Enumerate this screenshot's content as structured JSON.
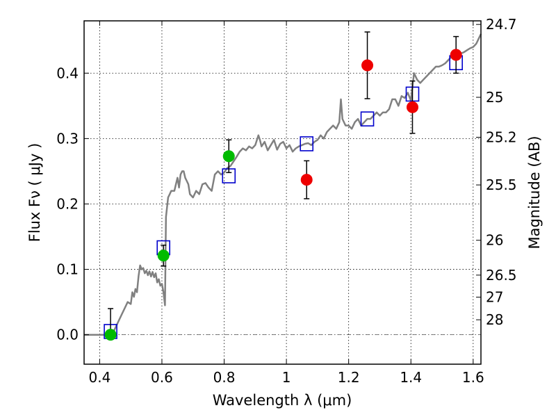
{
  "chart_data": {
    "type": "scatter",
    "xlabel": "Wavelength  λ (μm)",
    "ylabel": "Flux  Fν  ( μJy )",
    "ylabel_right": "Magnitude (AB)",
    "xlim": [
      0.35,
      1.625
    ],
    "ylim": [
      -0.045,
      0.48
    ],
    "grid": true,
    "x_ticks": [
      0.4,
      0.6,
      0.8,
      1.0,
      1.2,
      1.4,
      1.6
    ],
    "x_tick_labels": [
      "0.4",
      "0.6",
      "0.8",
      "1",
      "1.2",
      "1.4",
      "1.6"
    ],
    "y_ticks": [
      0.0,
      0.1,
      0.2,
      0.3,
      0.4
    ],
    "y_tick_labels": [
      "0.0",
      "0.1",
      "0.2",
      "0.3",
      "0.4"
    ],
    "right_ticks": [
      {
        "label": "24.7",
        "flux": 0.4745
      },
      {
        "label": "25",
        "flux": 0.3631
      },
      {
        "label": "25.2",
        "flux": 0.302
      },
      {
        "label": "25.5",
        "flux": 0.2291
      },
      {
        "label": "26",
        "flux": 0.1445
      },
      {
        "label": "26.5",
        "flux": 0.0912
      },
      {
        "label": "27",
        "flux": 0.0575
      },
      {
        "label": "28",
        "flux": 0.0229
      }
    ],
    "colors": {
      "model": "#808080",
      "green": "#00bb00",
      "red": "#ee0000",
      "box": "#0000cc",
      "errorbar": "#000000"
    },
    "series": [
      {
        "kind": "line",
        "points": [
          [
            0.35,
            0.0
          ],
          [
            0.44,
            0.0
          ],
          [
            0.455,
            0.015
          ],
          [
            0.47,
            0.03
          ],
          [
            0.48,
            0.04
          ],
          [
            0.49,
            0.05
          ],
          [
            0.5,
            0.047
          ],
          [
            0.505,
            0.065
          ],
          [
            0.51,
            0.058
          ],
          [
            0.515,
            0.07
          ],
          [
            0.52,
            0.065
          ],
          [
            0.525,
            0.09
          ],
          [
            0.53,
            0.106
          ],
          [
            0.535,
            0.1
          ],
          [
            0.54,
            0.102
          ],
          [
            0.545,
            0.094
          ],
          [
            0.55,
            0.098
          ],
          [
            0.555,
            0.091
          ],
          [
            0.56,
            0.097
          ],
          [
            0.565,
            0.089
          ],
          [
            0.57,
            0.096
          ],
          [
            0.575,
            0.088
          ],
          [
            0.58,
            0.094
          ],
          [
            0.585,
            0.08
          ],
          [
            0.59,
            0.085
          ],
          [
            0.595,
            0.075
          ],
          [
            0.6,
            0.078
          ],
          [
            0.605,
            0.065
          ],
          [
            0.61,
            0.045
          ],
          [
            0.613,
            0.18
          ],
          [
            0.62,
            0.21
          ],
          [
            0.625,
            0.215
          ],
          [
            0.63,
            0.22
          ],
          [
            0.64,
            0.22
          ],
          [
            0.645,
            0.23
          ],
          [
            0.65,
            0.24
          ],
          [
            0.655,
            0.225
          ],
          [
            0.66,
            0.245
          ],
          [
            0.665,
            0.25
          ],
          [
            0.67,
            0.25
          ],
          [
            0.675,
            0.24
          ],
          [
            0.68,
            0.235
          ],
          [
            0.685,
            0.23
          ],
          [
            0.69,
            0.215
          ],
          [
            0.7,
            0.21
          ],
          [
            0.71,
            0.22
          ],
          [
            0.72,
            0.215
          ],
          [
            0.73,
            0.23
          ],
          [
            0.74,
            0.232
          ],
          [
            0.75,
            0.225
          ],
          [
            0.76,
            0.22
          ],
          [
            0.77,
            0.245
          ],
          [
            0.78,
            0.25
          ],
          [
            0.79,
            0.245
          ],
          [
            0.8,
            0.248
          ],
          [
            0.81,
            0.255
          ],
          [
            0.82,
            0.258
          ],
          [
            0.83,
            0.265
          ],
          [
            0.84,
            0.272
          ],
          [
            0.85,
            0.28
          ],
          [
            0.86,
            0.285
          ],
          [
            0.87,
            0.282
          ],
          [
            0.88,
            0.288
          ],
          [
            0.89,
            0.285
          ],
          [
            0.9,
            0.29
          ],
          [
            0.91,
            0.305
          ],
          [
            0.915,
            0.298
          ],
          [
            0.92,
            0.288
          ],
          [
            0.93,
            0.295
          ],
          [
            0.94,
            0.282
          ],
          [
            0.95,
            0.29
          ],
          [
            0.96,
            0.298
          ],
          [
            0.97,
            0.283
          ],
          [
            0.98,
            0.292
          ],
          [
            0.99,
            0.295
          ],
          [
            1.0,
            0.285
          ],
          [
            1.01,
            0.29
          ],
          [
            1.02,
            0.28
          ],
          [
            1.03,
            0.285
          ],
          [
            1.04,
            0.288
          ],
          [
            1.05,
            0.29
          ],
          [
            1.06,
            0.292
          ],
          [
            1.07,
            0.293
          ],
          [
            1.08,
            0.29
          ],
          [
            1.09,
            0.295
          ],
          [
            1.1,
            0.298
          ],
          [
            1.11,
            0.305
          ],
          [
            1.12,
            0.3
          ],
          [
            1.13,
            0.31
          ],
          [
            1.14,
            0.315
          ],
          [
            1.15,
            0.32
          ],
          [
            1.16,
            0.315
          ],
          [
            1.17,
            0.325
          ],
          [
            1.175,
            0.36
          ],
          [
            1.18,
            0.33
          ],
          [
            1.19,
            0.32
          ],
          [
            1.2,
            0.32
          ],
          [
            1.21,
            0.315
          ],
          [
            1.22,
            0.325
          ],
          [
            1.23,
            0.33
          ],
          [
            1.24,
            0.32
          ],
          [
            1.25,
            0.325
          ],
          [
            1.26,
            0.33
          ],
          [
            1.27,
            0.33
          ],
          [
            1.28,
            0.335
          ],
          [
            1.29,
            0.34
          ],
          [
            1.3,
            0.335
          ],
          [
            1.31,
            0.34
          ],
          [
            1.32,
            0.34
          ],
          [
            1.33,
            0.345
          ],
          [
            1.34,
            0.36
          ],
          [
            1.35,
            0.36
          ],
          [
            1.36,
            0.35
          ],
          [
            1.37,
            0.365
          ],
          [
            1.38,
            0.362
          ],
          [
            1.39,
            0.37
          ],
          [
            1.4,
            0.358
          ],
          [
            1.41,
            0.4
          ],
          [
            1.42,
            0.39
          ],
          [
            1.43,
            0.385
          ],
          [
            1.44,
            0.39
          ],
          [
            1.45,
            0.395
          ],
          [
            1.46,
            0.4
          ],
          [
            1.47,
            0.405
          ],
          [
            1.48,
            0.41
          ],
          [
            1.49,
            0.41
          ],
          [
            1.5,
            0.412
          ],
          [
            1.51,
            0.415
          ],
          [
            1.52,
            0.42
          ],
          [
            1.53,
            0.425
          ],
          [
            1.54,
            0.43
          ],
          [
            1.55,
            0.428
          ],
          [
            1.56,
            0.43
          ],
          [
            1.57,
            0.432
          ],
          [
            1.58,
            0.435
          ],
          [
            1.59,
            0.438
          ],
          [
            1.6,
            0.44
          ],
          [
            1.61,
            0.445
          ],
          [
            1.625,
            0.46
          ]
        ]
      },
      {
        "kind": "markers",
        "marker": "square",
        "color": "blue",
        "points": [
          [
            0.435,
            0.005
          ],
          [
            0.605,
            0.133
          ],
          [
            0.815,
            0.243
          ],
          [
            1.065,
            0.292
          ],
          [
            1.26,
            0.33
          ],
          [
            1.405,
            0.368
          ],
          [
            1.545,
            0.416
          ]
        ]
      },
      {
        "kind": "markers",
        "marker": "circle",
        "color": "green",
        "points": [
          {
            "x": 0.435,
            "y": 0.0,
            "yerr_low": 0.0,
            "yerr_high": 0.04
          },
          {
            "x": 0.605,
            "y": 0.121,
            "yerr_low": 0.016,
            "yerr_high": 0.016
          },
          {
            "x": 0.815,
            "y": 0.273,
            "yerr_low": 0.025,
            "yerr_high": 0.025
          }
        ]
      },
      {
        "kind": "markers",
        "marker": "circle",
        "color": "red",
        "points": [
          {
            "x": 1.065,
            "y": 0.237,
            "yerr_low": 0.029,
            "yerr_high": 0.029
          },
          {
            "x": 1.26,
            "y": 0.412,
            "yerr_low": 0.051,
            "yerr_high": 0.051
          },
          {
            "x": 1.405,
            "y": 0.348,
            "yerr_low": 0.04,
            "yerr_high": 0.04
          },
          {
            "x": 1.545,
            "y": 0.428,
            "yerr_low": 0.028,
            "yerr_high": 0.028
          }
        ]
      }
    ]
  }
}
